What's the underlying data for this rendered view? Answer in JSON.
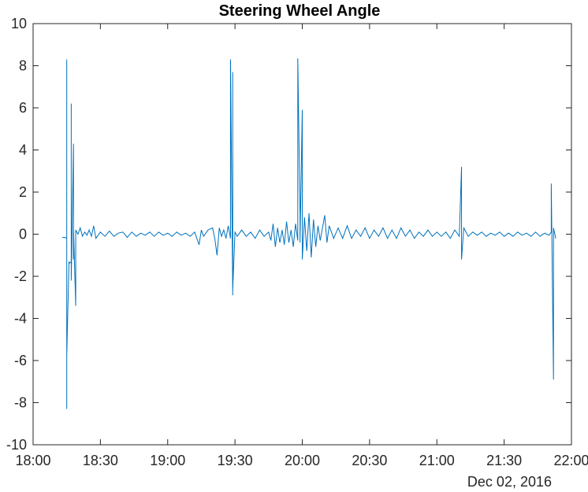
{
  "chart_data": {
    "type": "line",
    "title": "Steering Wheel Angle",
    "xlabel": "",
    "ylabel": "",
    "date_label": "Dec 02, 2016",
    "xlim": [
      "18:00",
      "22:00"
    ],
    "ylim": [
      -10,
      10
    ],
    "x_ticks": [
      "18:00",
      "18:30",
      "19:00",
      "19:30",
      "20:00",
      "20:30",
      "21:00",
      "21:30",
      "22:00"
    ],
    "y_ticks": [
      10,
      8,
      6,
      4,
      2,
      0,
      -2,
      -4,
      -6,
      -8,
      -10
    ],
    "grid": false,
    "legend": "none",
    "line_color": "#0072BD",
    "axis_color": "#262626",
    "series": [
      {
        "points": [
          [
            "18:13",
            -0.15
          ],
          [
            "18:14",
            -0.15
          ],
          [
            "18:15",
            -0.2
          ],
          [
            "18:15",
            8.3
          ],
          [
            "18:15",
            -8.3
          ],
          [
            "18:15",
            1.5
          ],
          [
            "18:15",
            -5.8
          ],
          [
            "18:16",
            -1.3
          ],
          [
            "18:16",
            -1.4
          ],
          [
            "18:17",
            -1.3
          ],
          [
            "18:17",
            6.2
          ],
          [
            "18:17",
            -2.2
          ],
          [
            "18:18",
            4.3
          ],
          [
            "18:18",
            -1.2
          ],
          [
            "18:18",
            0.3
          ],
          [
            "18:19",
            -3.4
          ],
          [
            "18:19",
            0.2
          ],
          [
            "18:20",
            0.0
          ],
          [
            "18:21",
            0.3
          ],
          [
            "18:22",
            -0.1
          ],
          [
            "18:23",
            0.1
          ],
          [
            "18:24",
            -0.05
          ],
          [
            "18:25",
            0.2
          ],
          [
            "18:26",
            -0.1
          ],
          [
            "18:27",
            0.4
          ],
          [
            "18:28",
            -0.2
          ],
          [
            "18:30",
            0.1
          ],
          [
            "18:32",
            -0.1
          ],
          [
            "18:34",
            0.15
          ],
          [
            "18:36",
            -0.1
          ],
          [
            "18:38",
            0.05
          ],
          [
            "18:40",
            0.1
          ],
          [
            "18:42",
            -0.15
          ],
          [
            "18:44",
            0.1
          ],
          [
            "18:46",
            -0.1
          ],
          [
            "18:48",
            0.05
          ],
          [
            "18:50",
            -0.05
          ],
          [
            "18:52",
            0.1
          ],
          [
            "18:54",
            -0.1
          ],
          [
            "18:56",
            0.1
          ],
          [
            "18:58",
            -0.05
          ],
          [
            "19:00",
            0.05
          ],
          [
            "19:02",
            -0.1
          ],
          [
            "19:04",
            0.1
          ],
          [
            "19:06",
            -0.05
          ],
          [
            "19:08",
            0.05
          ],
          [
            "19:10",
            -0.1
          ],
          [
            "19:12",
            0.1
          ],
          [
            "19:14",
            -0.5
          ],
          [
            "19:15",
            0.2
          ],
          [
            "19:16",
            -0.1
          ],
          [
            "19:18",
            0.2
          ],
          [
            "19:20",
            0.3
          ],
          [
            "19:21",
            -0.2
          ],
          [
            "19:22",
            -1.0
          ],
          [
            "19:23",
            0.3
          ],
          [
            "19:24",
            -0.1
          ],
          [
            "19:25",
            0.2
          ],
          [
            "19:26",
            -0.2
          ],
          [
            "19:27",
            0.4
          ],
          [
            "19:28",
            -0.2
          ],
          [
            "19:28",
            8.3
          ],
          [
            "19:29",
            -2.9
          ],
          [
            "19:29",
            7.7
          ],
          [
            "19:29",
            -2.6
          ],
          [
            "19:30",
            0.1
          ],
          [
            "19:31",
            -0.1
          ],
          [
            "19:33",
            0.2
          ],
          [
            "19:35",
            -0.1
          ],
          [
            "19:37",
            0.1
          ],
          [
            "19:39",
            -0.2
          ],
          [
            "19:41",
            0.2
          ],
          [
            "19:43",
            -0.1
          ],
          [
            "19:45",
            0.1
          ],
          [
            "19:46",
            -0.3
          ],
          [
            "19:47",
            0.5
          ],
          [
            "19:48",
            -0.6
          ],
          [
            "19:49",
            0.3
          ],
          [
            "19:50",
            -0.4
          ],
          [
            "19:51",
            0.2
          ],
          [
            "19:52",
            -0.5
          ],
          [
            "19:53",
            0.6
          ],
          [
            "19:54",
            -0.4
          ],
          [
            "19:55",
            0.2
          ],
          [
            "19:56",
            -0.6
          ],
          [
            "19:57",
            0.5
          ],
          [
            "19:58",
            -0.3
          ],
          [
            "19:58",
            8.35
          ],
          [
            "19:59",
            0.9
          ],
          [
            "19:59",
            -0.4
          ],
          [
            "20:00",
            5.9
          ],
          [
            "20:00",
            -1.2
          ],
          [
            "20:01",
            0.8
          ],
          [
            "20:02",
            -0.8
          ],
          [
            "20:03",
            1.0
          ],
          [
            "20:04",
            -1.1
          ],
          [
            "20:05",
            0.7
          ],
          [
            "20:06",
            -0.6
          ],
          [
            "20:07",
            0.4
          ],
          [
            "20:08",
            -0.3
          ],
          [
            "20:10",
            0.9
          ],
          [
            "20:11",
            -0.4
          ],
          [
            "20:12",
            0.4
          ],
          [
            "20:14",
            -0.2
          ],
          [
            "20:16",
            0.3
          ],
          [
            "20:18",
            -0.2
          ],
          [
            "20:20",
            0.4
          ],
          [
            "20:22",
            -0.2
          ],
          [
            "20:24",
            0.2
          ],
          [
            "20:26",
            -0.1
          ],
          [
            "20:28",
            0.3
          ],
          [
            "20:30",
            -0.2
          ],
          [
            "20:32",
            0.2
          ],
          [
            "20:34",
            -0.1
          ],
          [
            "20:36",
            0.3
          ],
          [
            "20:38",
            -0.2
          ],
          [
            "20:40",
            0.2
          ],
          [
            "20:42",
            -0.2
          ],
          [
            "20:44",
            0.3
          ],
          [
            "20:46",
            -0.1
          ],
          [
            "20:48",
            0.2
          ],
          [
            "20:50",
            -0.2
          ],
          [
            "20:52",
            0.1
          ],
          [
            "20:54",
            -0.1
          ],
          [
            "20:56",
            0.2
          ],
          [
            "20:58",
            -0.1
          ],
          [
            "21:00",
            0.1
          ],
          [
            "21:02",
            -0.1
          ],
          [
            "21:04",
            0.1
          ],
          [
            "21:06",
            -0.2
          ],
          [
            "21:08",
            0.2
          ],
          [
            "21:10",
            -0.1
          ],
          [
            "21:11",
            3.2
          ],
          [
            "21:11",
            -1.2
          ],
          [
            "21:12",
            0.3
          ],
          [
            "21:14",
            -0.1
          ],
          [
            "21:16",
            0.1
          ],
          [
            "21:18",
            -0.05
          ],
          [
            "21:20",
            0.1
          ],
          [
            "21:22",
            -0.1
          ],
          [
            "21:24",
            0.05
          ],
          [
            "21:26",
            -0.05
          ],
          [
            "21:28",
            0.1
          ],
          [
            "21:30",
            -0.1
          ],
          [
            "21:32",
            0.05
          ],
          [
            "21:34",
            -0.1
          ],
          [
            "21:36",
            0.1
          ],
          [
            "21:38",
            -0.05
          ],
          [
            "21:40",
            0.05
          ],
          [
            "21:42",
            -0.1
          ],
          [
            "21:44",
            0.1
          ],
          [
            "21:46",
            -0.1
          ],
          [
            "21:48",
            0.05
          ],
          [
            "21:50",
            -0.05
          ],
          [
            "21:51",
            0.1
          ],
          [
            "21:51",
            2.4
          ],
          [
            "21:52",
            -6.9
          ],
          [
            "21:52",
            -2.6
          ],
          [
            "21:52",
            0.3
          ],
          [
            "21:53",
            -0.2
          ]
        ]
      }
    ]
  }
}
